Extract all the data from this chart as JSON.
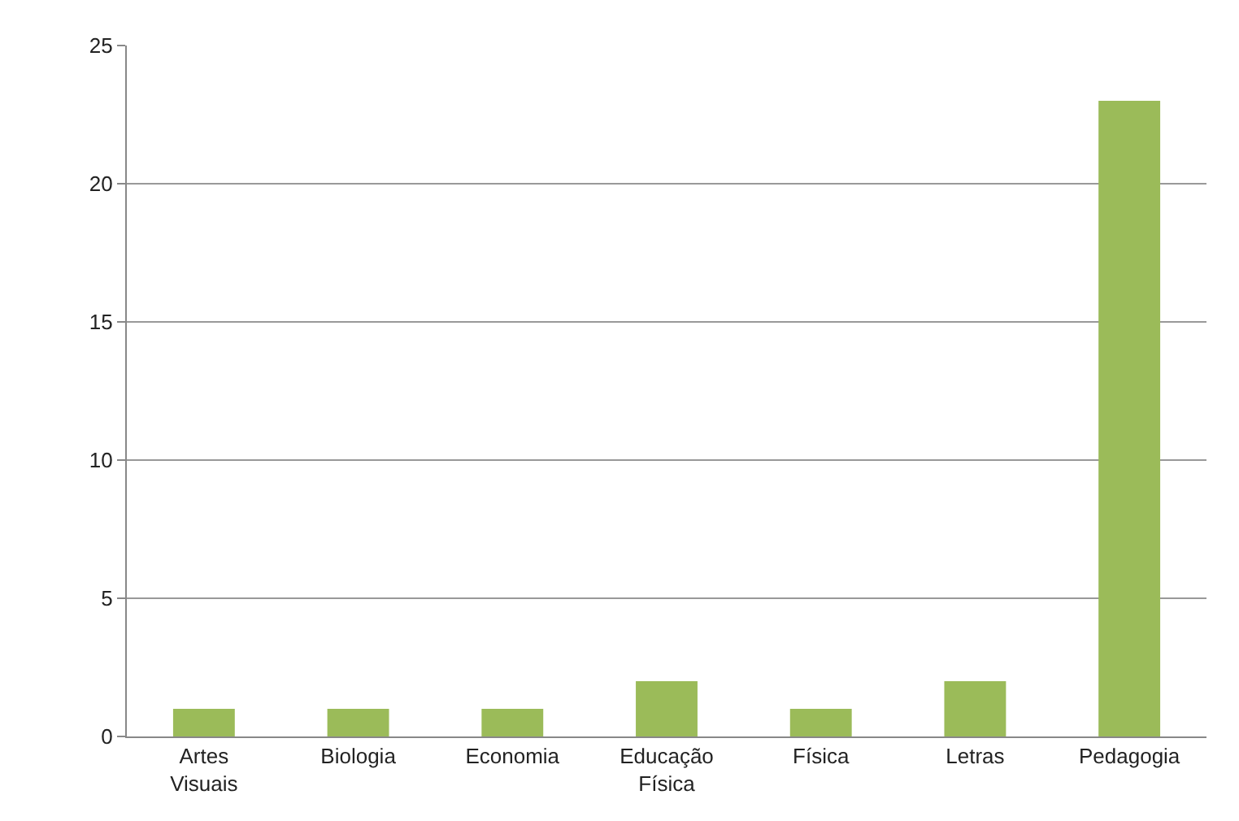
{
  "chart_data": {
    "type": "bar",
    "categories": [
      "Artes Visuais",
      "Biologia",
      "Economia",
      "Educação Física",
      "Física",
      "Letras",
      "Pedagogia"
    ],
    "values": [
      1,
      1,
      1,
      2,
      1,
      2,
      23
    ],
    "color": "#9bbb59",
    "ylim": [
      0,
      25
    ],
    "yticks": [
      0,
      5,
      10,
      15,
      20,
      25
    ],
    "grid": "y"
  }
}
